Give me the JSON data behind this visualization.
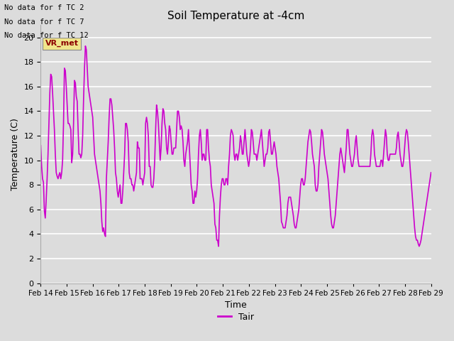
{
  "title": "Soil Temperature at -4cm",
  "xlabel": "Time",
  "ylabel": "Temperature (C)",
  "ylim": [
    0,
    21
  ],
  "yticks": [
    0,
    2,
    4,
    6,
    8,
    10,
    12,
    14,
    16,
    18,
    20
  ],
  "x_labels": [
    "Feb 14",
    "Feb 15",
    "Feb 16",
    "Feb 17",
    "Feb 18",
    "Feb 19",
    "Feb 20",
    "Feb 21",
    "Feb 22",
    "Feb 23",
    "Feb 24",
    "Feb 25",
    "Feb 26",
    "Feb 27",
    "Feb 28",
    "Feb 29"
  ],
  "line_color": "#CC00CC",
  "legend_label": "Tair",
  "text_lines": [
    "No data for f TC 2",
    "No data for f TC 7",
    "No data for f TC 12"
  ],
  "watermark_text": "VR_met",
  "background_color": "#DCDCDC",
  "plot_bg_color": "#DCDCDC",
  "grid_color": "white",
  "y_values": [
    11.2,
    9.5,
    8.5,
    8.2,
    5.9,
    5.3,
    6.8,
    8.5,
    10.5,
    13.0,
    15.5,
    17.0,
    16.8,
    15.5,
    14.0,
    12.5,
    10.5,
    9.0,
    8.7,
    8.5,
    8.8,
    9.0,
    8.5,
    9.0,
    10.0,
    13.0,
    17.5,
    17.3,
    16.0,
    14.5,
    13.0,
    13.0,
    12.8,
    12.5,
    9.8,
    10.5,
    13.0,
    16.5,
    16.3,
    15.2,
    14.8,
    12.5,
    10.5,
    10.5,
    10.2,
    10.5,
    12.0,
    15.0,
    17.5,
    19.3,
    19.0,
    17.5,
    16.0,
    15.5,
    15.0,
    14.5,
    14.0,
    13.5,
    12.0,
    10.5,
    10.0,
    9.5,
    9.0,
    8.5,
    8.0,
    7.5,
    6.5,
    5.0,
    4.2,
    4.5,
    4.0,
    3.8,
    8.5,
    10.0,
    11.5,
    13.5,
    15.0,
    15.0,
    14.5,
    13.5,
    12.5,
    11.0,
    9.0,
    8.5,
    7.5,
    7.0,
    7.5,
    8.0,
    6.5,
    6.5,
    7.5,
    9.0,
    10.5,
    13.0,
    13.0,
    12.5,
    11.5,
    9.0,
    8.5,
    8.5,
    8.0,
    8.0,
    7.5,
    8.0,
    8.5,
    9.0,
    11.5,
    11.0,
    11.0,
    8.5,
    8.5,
    8.5,
    8.0,
    8.5,
    9.0,
    13.0,
    13.5,
    13.0,
    12.0,
    9.5,
    9.5,
    8.0,
    7.8,
    7.8,
    8.5,
    10.0,
    12.5,
    14.5,
    14.0,
    13.0,
    11.5,
    10.0,
    11.0,
    13.0,
    14.2,
    14.0,
    13.0,
    12.5,
    11.0,
    10.5,
    11.5,
    12.8,
    12.5,
    11.5,
    10.5,
    10.5,
    11.0,
    11.0,
    11.0,
    12.5,
    14.0,
    14.0,
    13.5,
    12.5,
    12.8,
    12.5,
    11.5,
    10.0,
    9.5,
    10.5,
    11.0,
    11.5,
    12.5,
    11.0,
    9.5,
    8.0,
    7.5,
    6.5,
    6.5,
    7.5,
    7.0,
    7.5,
    8.5,
    10.5,
    12.0,
    12.5,
    11.5,
    10.0,
    10.5,
    10.5,
    10.0,
    10.0,
    12.5,
    12.5,
    11.0,
    10.0,
    9.5,
    8.0,
    7.5,
    7.0,
    6.5,
    4.8,
    4.5,
    3.5,
    3.5,
    3.0,
    5.5,
    7.0,
    8.0,
    8.5,
    8.5,
    8.0,
    8.0,
    8.5,
    8.5,
    8.0,
    9.5,
    10.5,
    12.0,
    12.5,
    12.3,
    12.0,
    10.5,
    10.0,
    10.5,
    10.5,
    10.0,
    10.5,
    11.0,
    12.0,
    11.5,
    10.5,
    10.5,
    11.5,
    12.5,
    11.5,
    10.5,
    10.0,
    9.5,
    10.0,
    11.0,
    12.5,
    12.3,
    11.5,
    10.5,
    10.5,
    10.5,
    10.0,
    10.5,
    11.0,
    11.5,
    12.0,
    12.5,
    11.5,
    10.5,
    9.5,
    10.0,
    10.5,
    10.5,
    11.0,
    12.3,
    12.5,
    11.5,
    10.5,
    10.5,
    11.0,
    11.5,
    11.0,
    10.5,
    9.5,
    9.0,
    8.5,
    7.5,
    6.5,
    5.0,
    4.8,
    4.5,
    4.5,
    4.5,
    5.0,
    5.5,
    6.5,
    7.0,
    7.0,
    7.0,
    6.5,
    6.0,
    5.5,
    4.8,
    4.5,
    4.5,
    5.0,
    5.5,
    6.0,
    7.0,
    8.0,
    8.5,
    8.5,
    8.0,
    8.0,
    8.5,
    9.5,
    10.5,
    11.5,
    12.0,
    12.5,
    12.3,
    11.5,
    10.5,
    10.0,
    9.5,
    8.0,
    7.5,
    7.5,
    8.0,
    9.5,
    10.5,
    11.5,
    12.5,
    12.3,
    11.5,
    10.5,
    10.0,
    9.5,
    9.0,
    8.5,
    7.5,
    6.5,
    5.5,
    4.8,
    4.5,
    4.5,
    5.0,
    5.5,
    6.5,
    7.5,
    8.5,
    9.5,
    10.5,
    11.0,
    10.5,
    10.0,
    9.5,
    9.0,
    10.0,
    11.0,
    12.5,
    12.5,
    11.5,
    10.5,
    10.0,
    9.5,
    9.5,
    10.0,
    10.5,
    11.5,
    12.0,
    11.0,
    10.0,
    9.5,
    9.5,
    9.5,
    9.5,
    9.5,
    9.5,
    9.5,
    9.5,
    9.5,
    9.5,
    9.5,
    9.5,
    9.5,
    10.5,
    12.0,
    12.5,
    12.0,
    10.5,
    10.0,
    9.5,
    9.5,
    9.5,
    9.5,
    9.5,
    10.0,
    10.0,
    9.5,
    10.5,
    11.5,
    12.5,
    12.0,
    10.5,
    10.0,
    10.0,
    10.5,
    10.5,
    10.5,
    10.5,
    10.5,
    10.5,
    10.5,
    11.0,
    12.0,
    12.3,
    11.5,
    10.5,
    10.0,
    9.5,
    9.5,
    10.0,
    11.0,
    12.0,
    12.5,
    12.3,
    11.5,
    10.5,
    9.5,
    8.5,
    7.5,
    6.5,
    5.5,
    4.5,
    3.8,
    3.5,
    3.5,
    3.2,
    3.0,
    3.2,
    3.5,
    4.0,
    4.5,
    5.0,
    5.5,
    6.0,
    6.5,
    7.0,
    7.5,
    8.0,
    8.5,
    9.0
  ]
}
